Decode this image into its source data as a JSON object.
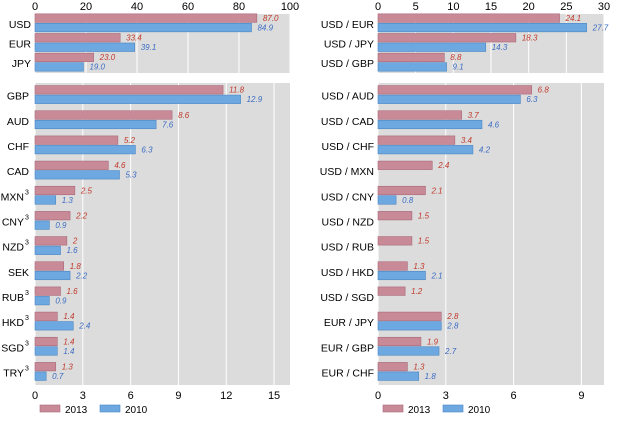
{
  "colors": {
    "series_2013": "#c98a98",
    "series_2010": "#6ea8e0",
    "label_2013": "#c0392b",
    "label_2010": "#3b6cc4",
    "plot_bg": "#dcdcdc",
    "grid": "#ffffff"
  },
  "legend": {
    "items": [
      "2013",
      "2010"
    ]
  },
  "chart_data": [
    {
      "type": "bar",
      "orientation": "horizontal",
      "title": "",
      "xlabel": "",
      "ylabel": "",
      "xlim": [
        0,
        100
      ],
      "xticks": [
        "0",
        "20",
        "40",
        "60",
        "80",
        "100"
      ],
      "grid": true,
      "legend_position": "bottom-left",
      "categories": [
        "USD",
        "EUR",
        "JPY"
      ],
      "superscripts": [
        "",
        "",
        ""
      ],
      "series": [
        {
          "name": "2013",
          "values": [
            87.0,
            33.4,
            23.0
          ],
          "labels": [
            "87.0",
            "33.4",
            "23.0"
          ]
        },
        {
          "name": "2010",
          "values": [
            84.9,
            39.1,
            19.0
          ],
          "labels": [
            "84.9",
            "39.1",
            "19.0"
          ]
        }
      ]
    },
    {
      "type": "bar",
      "orientation": "horizontal",
      "title": "",
      "xlabel": "",
      "ylabel": "",
      "xlim": [
        0,
        16
      ],
      "xticks": [
        "0",
        "3",
        "6",
        "9",
        "12",
        "15"
      ],
      "grid": true,
      "legend_position": "bottom-left",
      "categories": [
        "GBP",
        "AUD",
        "CHF",
        "CAD",
        "MXN",
        "CNY",
        "NZD",
        "SEK",
        "RUB",
        "HKD",
        "SGD",
        "TRY"
      ],
      "superscripts": [
        "",
        "",
        "",
        "",
        "3",
        "3",
        "3",
        "",
        "3",
        "3",
        "3",
        "3"
      ],
      "series": [
        {
          "name": "2013",
          "values": [
            11.8,
            8.6,
            5.2,
            4.6,
            2.5,
            2.2,
            2.0,
            1.8,
            1.6,
            1.4,
            1.4,
            1.3
          ],
          "labels": [
            "11.8",
            "8.6",
            "5.2",
            "4.6",
            "2.5",
            "2.2",
            "2",
            "1.8",
            "1.6",
            "1.4",
            "1.4",
            "1.3"
          ]
        },
        {
          "name": "2010",
          "values": [
            12.9,
            7.6,
            6.3,
            5.3,
            1.3,
            0.9,
            1.6,
            2.2,
            0.9,
            2.4,
            1.4,
            0.7
          ],
          "labels": [
            "12.9",
            "7.6",
            "6.3",
            "5.3",
            "1.3",
            "0.9",
            "1.6",
            "2.2",
            "0.9",
            "2.4",
            "1.4",
            "0.7"
          ]
        }
      ]
    },
    {
      "type": "bar",
      "orientation": "horizontal",
      "title": "",
      "xlabel": "",
      "ylabel": "",
      "xlim": [
        0,
        30
      ],
      "xticks": [
        "0",
        "5",
        "10",
        "15",
        "20",
        "25",
        "30"
      ],
      "grid": true,
      "legend_position": "bottom-left",
      "categories": [
        "USD / EUR",
        "USD / JPY",
        "USD / GBP"
      ],
      "superscripts": [
        "",
        "",
        ""
      ],
      "series": [
        {
          "name": "2013",
          "values": [
            24.1,
            18.3,
            8.8
          ],
          "labels": [
            "24.1",
            "18.3",
            "8.8"
          ]
        },
        {
          "name": "2010",
          "values": [
            27.7,
            14.3,
            9.1
          ],
          "labels": [
            "27.7",
            "14.3",
            "9.1"
          ]
        }
      ]
    },
    {
      "type": "bar",
      "orientation": "horizontal",
      "title": "",
      "xlabel": "",
      "ylabel": "",
      "xlim": [
        0,
        10
      ],
      "xticks": [
        "0",
        "3",
        "6",
        "9"
      ],
      "grid": true,
      "legend_position": "bottom-left",
      "categories": [
        "USD / AUD",
        "USD / CAD",
        "USD / CHF",
        "USD / MXN",
        "USD / CNY",
        "USD / NZD",
        "USD / RUB",
        "USD / HKD",
        "USD / SGD",
        "EUR / JPY",
        "EUR / GBP",
        "EUR / CHF"
      ],
      "superscripts": [
        "",
        "",
        "",
        "",
        "",
        "",
        "",
        "",
        "",
        "",
        "",
        ""
      ],
      "series": [
        {
          "name": "2013",
          "values": [
            6.8,
            3.7,
            3.4,
            2.4,
            2.1,
            1.5,
            1.5,
            1.3,
            1.2,
            2.8,
            1.9,
            1.3
          ],
          "labels": [
            "6.8",
            "3.7",
            "3.4",
            "2.4",
            "2.1",
            "1.5",
            "1.5",
            "1.3",
            "1.2",
            "2.8",
            "1.9",
            "1.3"
          ]
        },
        {
          "name": "2010",
          "values": [
            6.3,
            4.6,
            4.2,
            null,
            0.8,
            null,
            null,
            2.1,
            null,
            2.8,
            2.7,
            1.8
          ],
          "labels": [
            "6.3",
            "4.6",
            "4.2",
            "",
            "0.8",
            "",
            "",
            "2.1",
            "",
            "2.8",
            "2.7",
            "1.8"
          ]
        }
      ]
    }
  ]
}
